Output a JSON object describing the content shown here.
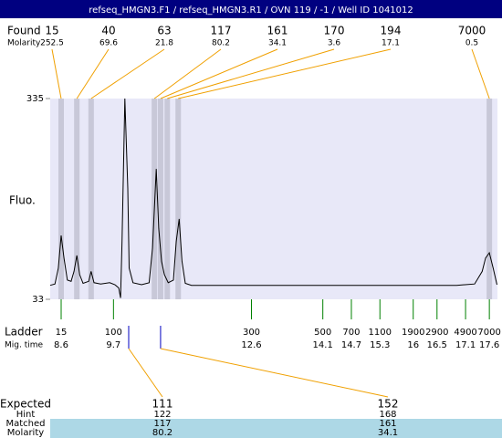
{
  "header": {
    "title": "refseq_HMGN3.F1 / refseq_HMGN3.R1 / OVN 119 / -1 / Well ID 1041012"
  },
  "found": {
    "label": "Found",
    "molarity_label": "Molarity",
    "peaks": [
      {
        "size": 15,
        "molarity": 252.5,
        "time": 8.6
      },
      {
        "size": 40,
        "molarity": 69.6,
        "time": 8.93
      },
      {
        "size": 63,
        "molarity": 21.8,
        "time": 9.23
      },
      {
        "size": 117,
        "molarity": 80.2,
        "time": 10.56
      },
      {
        "size": 161,
        "molarity": 34.1,
        "time": 10.69
      },
      {
        "size": 170,
        "molarity": 3.6,
        "time": 10.83
      },
      {
        "size": 194,
        "molarity": 17.1,
        "time": 11.06
      },
      {
        "size": 7000,
        "molarity": 0.5,
        "time": 17.6
      }
    ]
  },
  "chart_data": {
    "type": "line",
    "y_label": "Fluo.",
    "color": "#000000",
    "x": [
      8.37,
      8.47,
      8.54,
      8.6,
      8.66,
      8.73,
      8.81,
      8.87,
      8.93,
      8.99,
      9.06,
      9.18,
      9.23,
      9.29,
      9.43,
      9.62,
      9.73,
      9.81,
      9.85,
      9.88,
      9.94,
      10.0,
      10.03,
      10.11,
      10.29,
      10.45,
      10.52,
      10.6,
      10.65,
      10.71,
      10.77,
      10.85,
      10.96,
      11.02,
      11.08,
      11.14,
      11.21,
      11.34,
      13.07,
      14.99,
      16.91,
      17.29,
      17.45,
      17.52,
      17.6,
      17.68,
      17.76
    ],
    "values": [
      54,
      56,
      80,
      129,
      95,
      62,
      60,
      75,
      99,
      70,
      57,
      60,
      75,
      58,
      56,
      58,
      55,
      50,
      35,
      120,
      335,
      200,
      80,
      58,
      55,
      58,
      110,
      229,
      140,
      90,
      70,
      58,
      62,
      120,
      154,
      90,
      57,
      54,
      54,
      54,
      54,
      56,
      75,
      95,
      103,
      80,
      55
    ],
    "xlim": [
      8.37,
      17.77
    ],
    "ylim": [
      33,
      335
    ],
    "yticks": [
      33,
      335
    ]
  },
  "ladder": {
    "label": "Ladder",
    "time_label": "Mig. time",
    "peaks": [
      {
        "size": 15,
        "time": 8.6
      },
      {
        "size": 100,
        "time": 9.7
      },
      {
        "size": 300,
        "time": 12.6
      },
      {
        "size": 500,
        "time": 14.1
      },
      {
        "size": 700,
        "time": 14.7
      },
      {
        "size": 1100,
        "time": 15.3
      },
      {
        "size": 1900,
        "time": 16
      },
      {
        "size": 2900,
        "time": 16.5
      },
      {
        "size": 4900,
        "time": 17.1
      },
      {
        "size": 7000,
        "time": 17.6
      }
    ]
  },
  "expected": {
    "row_labels": [
      "Expected",
      "Hint",
      "Matched",
      "Molarity"
    ],
    "columns": [
      {
        "marker_time": 10.02,
        "expected": 111,
        "hint": 122,
        "matched": 117,
        "molarity": 80.2
      },
      {
        "marker_time": 10.69,
        "expected": 152,
        "hint": 168,
        "matched": 161,
        "molarity": 34.1
      }
    ]
  }
}
